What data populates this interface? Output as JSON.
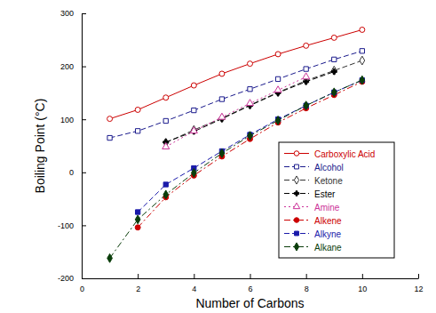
{
  "chart_data": {
    "type": "line",
    "x_label": "Number of Carbons",
    "y_label": "Boiling Point (°C)",
    "x": [
      1,
      2,
      3,
      4,
      5,
      6,
      7,
      8,
      9,
      10
    ],
    "xlim": [
      0,
      12
    ],
    "xticks": [
      0,
      2,
      4,
      6,
      8,
      10,
      12
    ],
    "ylim": [
      -200,
      300
    ],
    "yticks": [
      -200,
      -100,
      0,
      100,
      200,
      300
    ],
    "grid": false,
    "legend": "lower right",
    "series": [
      {
        "name": "Carboxylic Acid",
        "color": "#cc0000",
        "marker": "circle-open",
        "line_style": "solid",
        "values": [
          101,
          118,
          141,
          164,
          186,
          205,
          223,
          239,
          254,
          269
        ]
      },
      {
        "name": "Alcohol",
        "color": "#1a1a8c",
        "marker": "square-open",
        "line_style": "dashed",
        "values": [
          65,
          78,
          97,
          117,
          138,
          157,
          176,
          195,
          213,
          229
        ]
      },
      {
        "name": "Ketone",
        "color": "#333333",
        "marker": "diamond-open",
        "line_style": "dashed",
        "values": [
          null,
          null,
          56,
          80,
          102,
          127,
          151,
          173,
          192,
          211
        ]
      },
      {
        "name": "Ester",
        "color": "#000000",
        "marker": "cross",
        "line_style": "dashed",
        "values": [
          null,
          null,
          57,
          77,
          101,
          126,
          150,
          171,
          190,
          null
        ]
      },
      {
        "name": "Amine",
        "color": "#cc3399",
        "marker": "triangle-open",
        "line_style": "dotted",
        "values": [
          null,
          null,
          48,
          78,
          104,
          130,
          155,
          180,
          null,
          null
        ]
      },
      {
        "name": "Alkene",
        "color": "#cc0000",
        "marker": "circle",
        "line_style": "dashdot",
        "values": [
          null,
          -104,
          -47,
          -6,
          30,
          63,
          94,
          121,
          146,
          171
        ]
      },
      {
        "name": "Alkyne",
        "color": "#1a1aaa",
        "marker": "square",
        "line_style": "dashed",
        "values": [
          null,
          -75,
          -23,
          8,
          40,
          71,
          100,
          126,
          151,
          174
        ]
      },
      {
        "name": "Alkane",
        "color": "#0a3d0a",
        "marker": "diamond",
        "line_style": "dashdot",
        "values": [
          -162,
          -89,
          -42,
          -1,
          36,
          69,
          98,
          126,
          151,
          174
        ]
      }
    ]
  }
}
